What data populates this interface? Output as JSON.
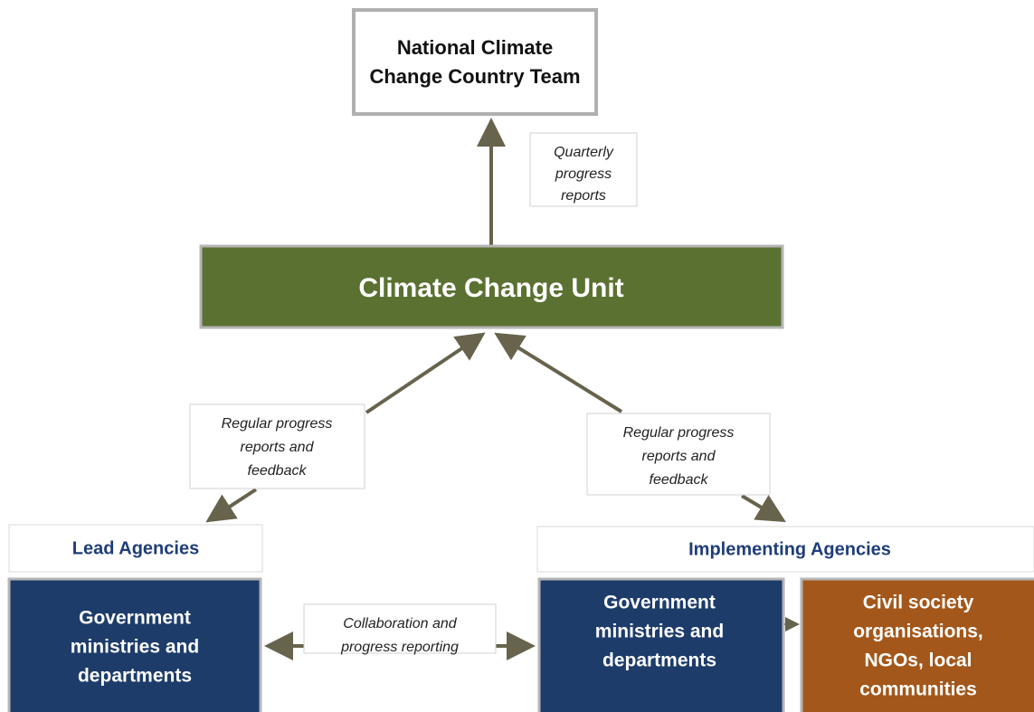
{
  "nodes": [
    {
      "id": "national-team",
      "lines": [
        "National Climate",
        "Change Country Team"
      ]
    },
    {
      "id": "ccu",
      "lines": [
        "Climate Change Unit"
      ]
    },
    {
      "id": "lead-header",
      "lines": [
        "Lead Agencies"
      ]
    },
    {
      "id": "impl-header",
      "lines": [
        "Implementing Agencies"
      ]
    },
    {
      "id": "lead-gov",
      "lines": [
        "Government",
        "ministries and",
        "departments"
      ]
    },
    {
      "id": "impl-gov",
      "lines": [
        "Government",
        "ministries and",
        "departments"
      ]
    },
    {
      "id": "civil",
      "lines": [
        "Civil society",
        "organisations,",
        "NGOs, local",
        "communities"
      ]
    }
  ],
  "edges": [
    {
      "from": "ccu",
      "to": "national-team",
      "lines": [
        "Quarterly",
        "progress",
        "reports"
      ]
    },
    {
      "from": "ccu",
      "to": "lead-header",
      "lines": [
        "Regular progress",
        "reports and",
        "feedback"
      ]
    },
    {
      "from": "ccu",
      "to": "impl-header",
      "lines": [
        "Regular progress",
        "reports and",
        "feedback"
      ]
    },
    {
      "from": "lead-gov",
      "to": "impl-gov",
      "lines": [
        "Collaboration and",
        "progress reporting"
      ]
    }
  ]
}
